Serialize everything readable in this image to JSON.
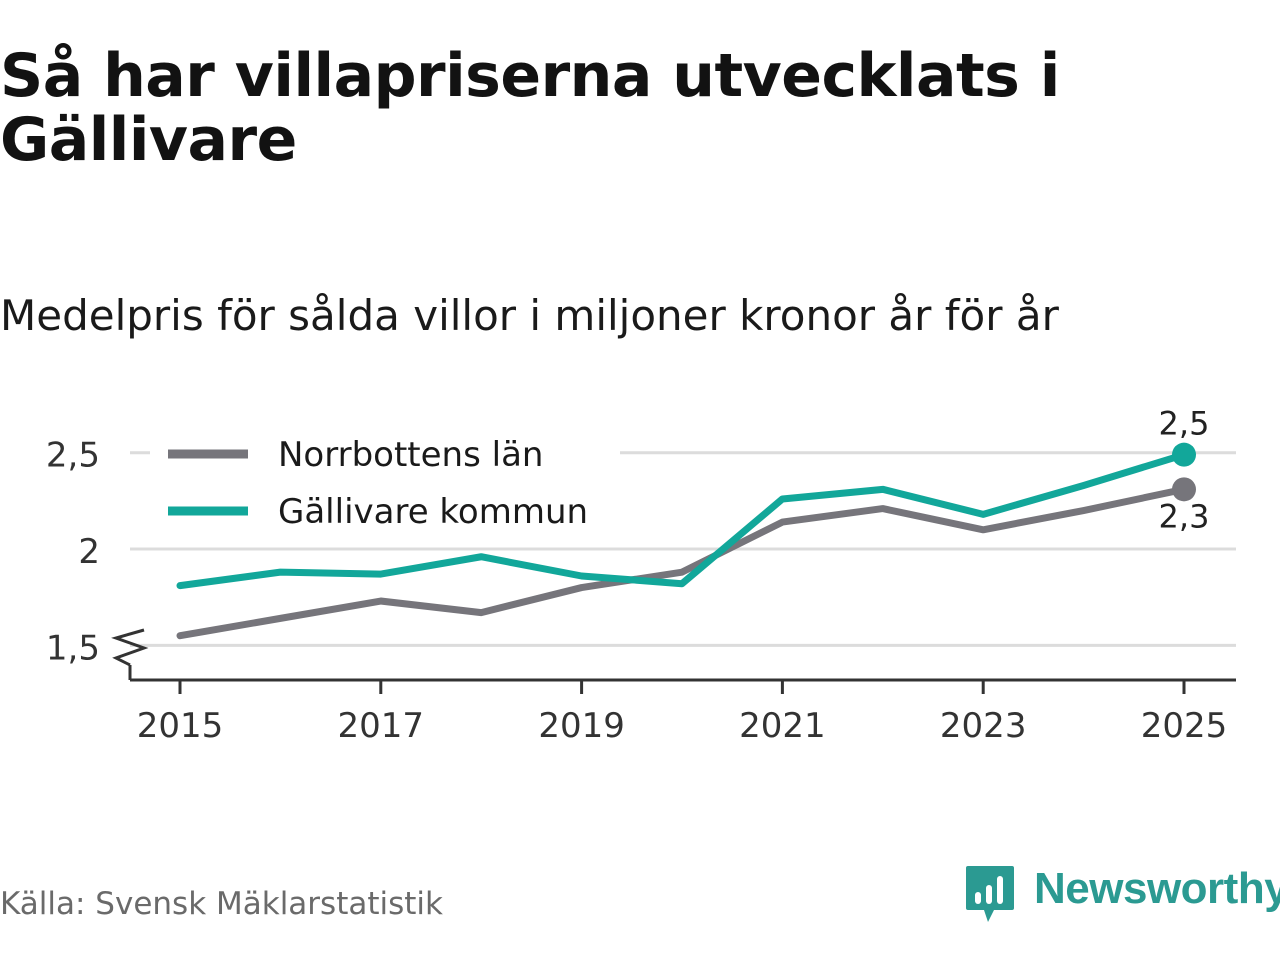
{
  "title": "Så har villapriserna utvecklats i Gällivare",
  "subtitle": "Medelpris för sålda villor i miljoner kronor år för år",
  "source": "Källa: Svensk Mäklarstatistik",
  "brand": "Newsworthy",
  "colors": {
    "norrbotten": "#76757b",
    "gallivare": "#12a79a",
    "grid": "#dcdcdc",
    "axis": "#333333",
    "brand": "#2b9a92"
  },
  "chart_data": {
    "type": "line",
    "title": "Så har villapriserna utvecklats i Gällivare",
    "subtitle": "Medelpris för sålda villor i miljoner kronor år för år",
    "x": [
      2015,
      2016,
      2017,
      2018,
      2019,
      2020,
      2021,
      2022,
      2023,
      2024,
      2025
    ],
    "x_ticks": [
      "2015",
      "2017",
      "2019",
      "2021",
      "2023",
      "2025"
    ],
    "y_ticks": [
      "1,5",
      "2",
      "2,5"
    ],
    "y_tick_values": [
      1.5,
      2,
      2.5
    ],
    "ylim": [
      1.32,
      2.67
    ],
    "y_axis_break": true,
    "legend_position": "top-left",
    "xlabel": "",
    "ylabel": "",
    "series": [
      {
        "name": "Norrbottens län",
        "color_key": "norrbotten",
        "values": [
          1.55,
          1.64,
          1.73,
          1.67,
          1.8,
          1.88,
          2.14,
          2.21,
          2.1,
          2.2,
          2.31
        ],
        "end_label": "2,3",
        "end_label_position": "below"
      },
      {
        "name": "Gällivare kommun",
        "color_key": "gallivare",
        "values": [
          1.81,
          1.88,
          1.87,
          1.96,
          1.86,
          1.82,
          2.26,
          2.31,
          2.18,
          2.33,
          2.49
        ],
        "end_label": "2,5",
        "end_label_position": "above"
      }
    ]
  }
}
